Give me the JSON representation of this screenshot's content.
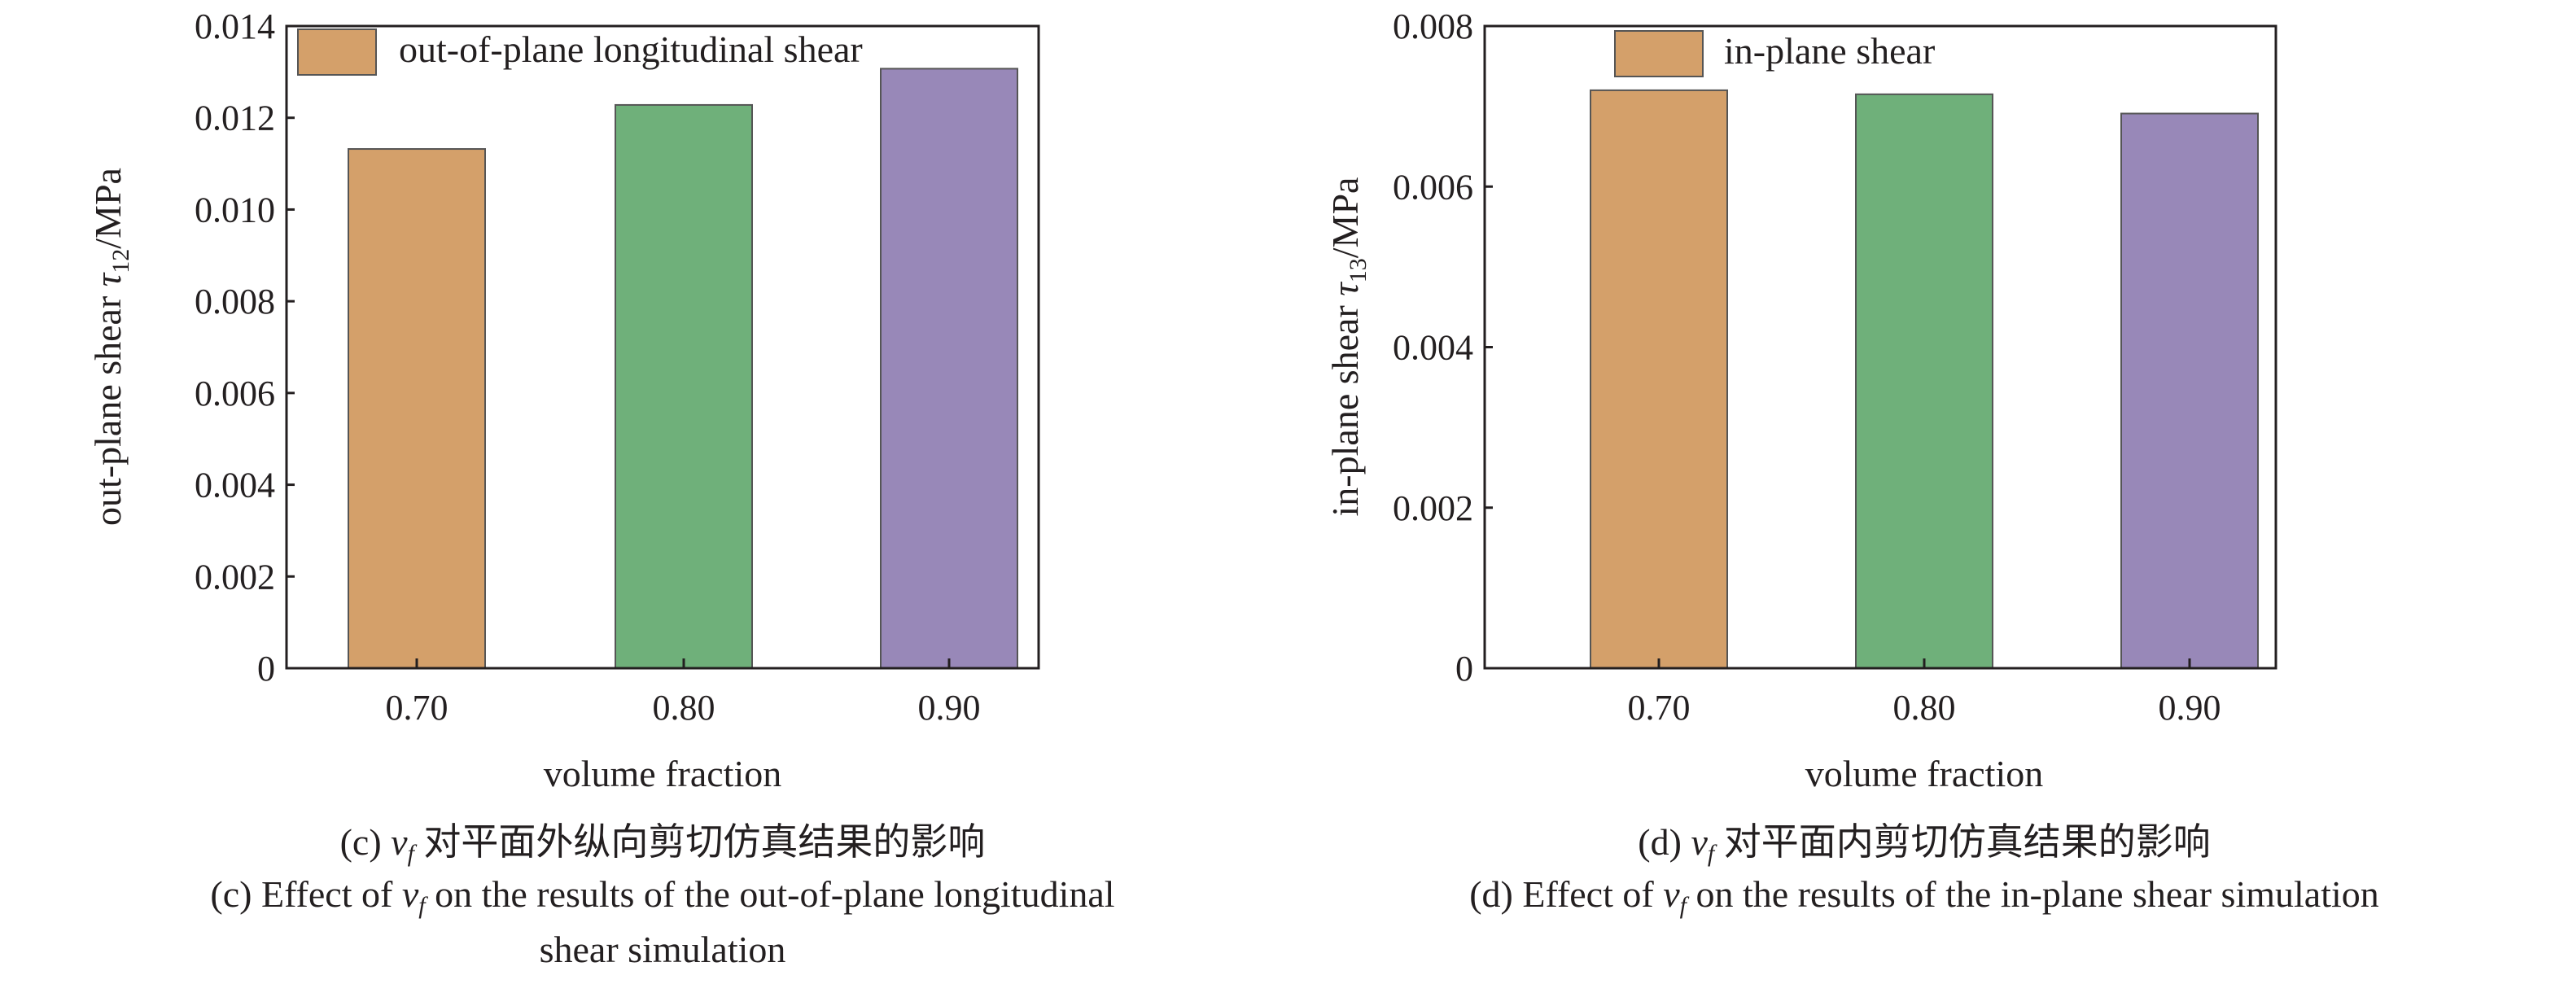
{
  "chart_data": [
    {
      "type": "bar",
      "panel": "c",
      "categories": [
        "0.70",
        "0.80",
        "0.90"
      ],
      "values": [
        0.01132,
        0.01228,
        0.01307
      ],
      "colors": [
        "#d4a06a",
        "#6fb07a",
        "#9888b8"
      ],
      "legend": "out-of-plane longitudinal shear",
      "legend_placement": "top-left",
      "xlabel": "volume fraction",
      "ylabel": {
        "pre": "out-plane shear ",
        "sym": "τ",
        "sub": "12",
        "post": "/MPa"
      },
      "ylim": [
        0,
        0.014
      ],
      "yticks": [
        "0",
        "0.002",
        "0.004",
        "0.006",
        "0.008",
        "0.010",
        "0.012",
        "0.014"
      ],
      "grid": false,
      "caption_cn": {
        "pre": "(c) ",
        "v": "v",
        "sub": "f",
        "post": " 对平面外纵向剪切仿真结果的影响"
      },
      "caption_en": {
        "pre": "(c) Effect of ",
        "v": "v",
        "sub": "f",
        "post": " on the results of the out-of-plane longitudinal",
        "line2": "shear simulation"
      }
    },
    {
      "type": "bar",
      "panel": "d",
      "categories": [
        "0.70",
        "0.80",
        "0.90"
      ],
      "values": [
        0.0072,
        0.00715,
        0.00691
      ],
      "colors": [
        "#d4a06a",
        "#6fb07a",
        "#9888b8"
      ],
      "legend": "in-plane shear",
      "legend_placement": "top-left",
      "xlabel": "volume fraction",
      "ylabel": {
        "pre": "in-plane shear ",
        "sym": "τ",
        "sub": "13",
        "post": "/MPa"
      },
      "ylim": [
        0,
        0.008
      ],
      "yticks": [
        "0",
        "0.002",
        "0.004",
        "0.006",
        "0.008"
      ],
      "grid": false,
      "caption_cn": {
        "pre": "(d) ",
        "v": "v",
        "sub": "f",
        "post": " 对平面内剪切仿真结果的影响"
      },
      "caption_en": {
        "pre": "(d) Effect of ",
        "v": "v",
        "sub": "f",
        "post": " on the results of the in-plane shear simulation"
      }
    }
  ]
}
